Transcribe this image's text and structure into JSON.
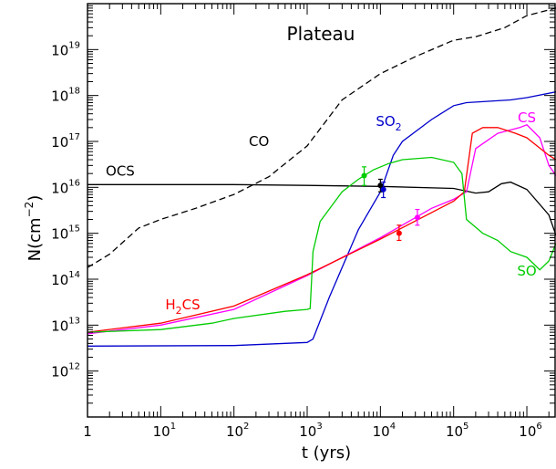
{
  "chart_data": {
    "type": "line",
    "title": "Plateau",
    "xlabel": "t (yrs)",
    "ylabel_base": "N(cm",
    "ylabel_exp": "−2",
    "ylabel_close": ")",
    "x_scale": "log",
    "y_scale": "log",
    "xlim": [
      1,
      2500000
    ],
    "ylim": [
      100000000000.0,
      1e+20
    ],
    "x_ticks": [
      {
        "value": 1,
        "base": "1",
        "exp": ""
      },
      {
        "value": 10,
        "base": "10",
        "exp": "1"
      },
      {
        "value": 100,
        "base": "10",
        "exp": "2"
      },
      {
        "value": 1000,
        "base": "10",
        "exp": "3"
      },
      {
        "value": 10000,
        "base": "10",
        "exp": "4"
      },
      {
        "value": 100000,
        "base": "10",
        "exp": "5"
      },
      {
        "value": 1000000,
        "base": "10",
        "exp": "6"
      }
    ],
    "y_ticks": [
      {
        "value": 1000000000000.0,
        "base": "10",
        "exp": "12"
      },
      {
        "value": 10000000000000.0,
        "base": "10",
        "exp": "13"
      },
      {
        "value": 100000000000000.0,
        "base": "10",
        "exp": "14"
      },
      {
        "value": 1000000000000000.0,
        "base": "10",
        "exp": "15"
      },
      {
        "value": 1e+16,
        "base": "10",
        "exp": "16"
      },
      {
        "value": 1e+17,
        "base": "10",
        "exp": "17"
      },
      {
        "value": 1e+18,
        "base": "10",
        "exp": "18"
      },
      {
        "value": 1e+19,
        "base": "10",
        "exp": "19"
      }
    ],
    "grid": false,
    "series": [
      {
        "name": "CO",
        "color": "#000000",
        "dash": true,
        "label": {
          "parts": [
            [
              "CO",
              ""
            ]
          ],
          "color": "#000000",
          "at": [
            220,
            8e+16
          ]
        },
        "points": [
          [
            1,
            180000000000000.0
          ],
          [
            2,
            350000000000000.0
          ],
          [
            5,
            1300000000000000.0
          ],
          [
            10,
            2000000000000000.0
          ],
          [
            30,
            3500000000000000.0
          ],
          [
            100,
            7000000000000000.0
          ],
          [
            300,
            1.7e+16
          ],
          [
            1000,
            8e+16
          ],
          [
            3000,
            8e+17
          ],
          [
            10000,
            3e+18
          ],
          [
            30000,
            7e+18
          ],
          [
            100000,
            1.6e+19
          ],
          [
            200000,
            1.9e+19
          ],
          [
            500000,
            3e+19
          ],
          [
            1000000,
            5.5e+19
          ],
          [
            2500000,
            8e+19
          ]
        ]
      },
      {
        "name": "OCS",
        "color": "#000000",
        "dash": false,
        "label": {
          "parts": [
            [
              "OCS",
              ""
            ]
          ],
          "color": "#000000",
          "at": [
            2.8,
            1.8e+16
          ]
        },
        "points": [
          [
            1,
            1.15e+16
          ],
          [
            100,
            1.15e+16
          ],
          [
            1000,
            1.1e+16
          ],
          [
            10000,
            1.05e+16
          ],
          [
            100000,
            9500000000000000.0
          ],
          [
            200000,
            7500000000000000.0
          ],
          [
            300000,
            8000000000000000.0
          ],
          [
            450000,
            1.2e+16
          ],
          [
            600000,
            1.3e+16
          ],
          [
            1000000,
            9000000000000000.0
          ],
          [
            2000000,
            2500000000000000.0
          ],
          [
            2500000,
            900000000000000.0
          ]
        ]
      },
      {
        "name": "SO2",
        "color": "#0000cc",
        "dash": false,
        "label": {
          "parts": [
            [
              "SO",
              ""
            ],
            [
              "2",
              "sub"
            ]
          ],
          "color": "#0000cc",
          "at": [
            13000,
            2.2e+17
          ]
        },
        "points": [
          [
            1,
            3500000000000.0
          ],
          [
            100,
            3600000000000.0
          ],
          [
            1000,
            4200000000000.0
          ],
          [
            1200,
            5000000000000.0
          ],
          [
            2000,
            40000000000000.0
          ],
          [
            5000,
            1200000000000000.0
          ],
          [
            10000,
            8000000000000000.0
          ],
          [
            15000,
            5e+16
          ],
          [
            20000,
            1e+17
          ],
          [
            50000,
            3e+17
          ],
          [
            100000,
            6e+17
          ],
          [
            150000,
            7e+17
          ],
          [
            300000,
            7.5e+17
          ],
          [
            600000,
            8e+17
          ],
          [
            1000000,
            9e+17
          ],
          [
            2500000,
            1.2e+18
          ]
        ]
      },
      {
        "name": "CS",
        "color": "#ff00ff",
        "dash": false,
        "label": {
          "parts": [
            [
              "CS",
              ""
            ]
          ],
          "color": "#ff00ff",
          "at": [
            1000000,
            2.6e+17
          ]
        },
        "points": [
          [
            1,
            6500000000000.0
          ],
          [
            10,
            10000000000000.0
          ],
          [
            100,
            22000000000000.0
          ],
          [
            1000,
            120000000000000.0
          ],
          [
            10000,
            800000000000000.0
          ],
          [
            50000,
            3500000000000000.0
          ],
          [
            100000,
            5500000000000000.0
          ],
          [
            150000,
            8000000000000000.0
          ],
          [
            200000,
            7e+16
          ],
          [
            400000,
            1.5e+17
          ],
          [
            800000,
            2e+17
          ],
          [
            1000000,
            2.3e+17
          ],
          [
            1500000,
            1.2e+17
          ],
          [
            2000000,
            3e+16
          ],
          [
            2500000,
            1.8e+16
          ]
        ]
      },
      {
        "name": "H2CS",
        "color": "#ff0000",
        "dash": false,
        "label": {
          "parts": [
            [
              "H",
              ""
            ],
            [
              "2",
              "sub"
            ],
            [
              "CS",
              ""
            ]
          ],
          "color": "#ff0000",
          "at": [
            20,
            22000000000000.0
          ]
        },
        "points": [
          [
            1,
            7000000000000.0
          ],
          [
            10,
            11000000000000.0
          ],
          [
            100,
            26000000000000.0
          ],
          [
            1000,
            125000000000000.0
          ],
          [
            10000,
            750000000000000.0
          ],
          [
            100000,
            5000000000000000.0
          ],
          [
            140000,
            8000000000000000.0
          ],
          [
            180000,
            1.5e+17
          ],
          [
            250000,
            2e+17
          ],
          [
            400000,
            2e+17
          ],
          [
            700000,
            1.5e+17
          ],
          [
            1000000,
            1.2e+17
          ],
          [
            2000000,
            5e+16
          ],
          [
            2500000,
            4e+16
          ]
        ]
      },
      {
        "name": "SO",
        "color": "#00cc00",
        "dash": false,
        "label": {
          "parts": [
            [
              "SO",
              ""
            ]
          ],
          "color": "#00cc00",
          "at": [
            1000000,
            120000000000000.0
          ]
        },
        "points": [
          [
            1,
            7000000000000.0
          ],
          [
            10,
            8000000000000.0
          ],
          [
            50,
            11000000000000.0
          ],
          [
            100,
            14000000000000.0
          ],
          [
            500,
            20000000000000.0
          ],
          [
            1000,
            22000000000000.0
          ],
          [
            1100,
            23000000000000.0
          ],
          [
            1200,
            400000000000000.0
          ],
          [
            1500,
            1800000000000000.0
          ],
          [
            3000,
            8000000000000000.0
          ],
          [
            5000,
            1.5e+16
          ],
          [
            8000,
            2.4e+16
          ],
          [
            13000,
            3.3e+16
          ],
          [
            20000,
            4e+16
          ],
          [
            50000,
            4.5e+16
          ],
          [
            100000,
            3.5e+16
          ],
          [
            130000,
            2e+16
          ],
          [
            150000,
            2000000000000000.0
          ],
          [
            250000,
            1000000000000000.0
          ],
          [
            400000,
            700000000000000.0
          ],
          [
            600000,
            400000000000000.0
          ],
          [
            1000000,
            300000000000000.0
          ],
          [
            1500000,
            160000000000000.0
          ],
          [
            2000000,
            250000000000000.0
          ],
          [
            2500000,
            600000000000000.0
          ]
        ]
      }
    ],
    "observations": [
      {
        "color": "#00cc00",
        "x": 6000,
        "y": 1.8e+16,
        "ylo": 1.1e+16,
        "yhi": 2.8e+16
      },
      {
        "color": "#000000",
        "x": 10000,
        "y": 1.1e+16,
        "ylo": 8000000000000000.0,
        "yhi": 1.5e+16
      },
      {
        "color": "#0000cc",
        "x": 11000,
        "y": 9000000000000000.0,
        "ylo": 6000000000000000.0,
        "yhi": 1.3e+16
      },
      {
        "color": "#ff0000",
        "x": 18000,
        "y": 1000000000000000.0,
        "ylo": 700000000000000.0,
        "yhi": 1500000000000000.0
      },
      {
        "color": "#ff00ff",
        "x": 32000,
        "y": 2200000000000000.0,
        "ylo": 1500000000000000.0,
        "yhi": 3300000000000000.0
      }
    ]
  }
}
